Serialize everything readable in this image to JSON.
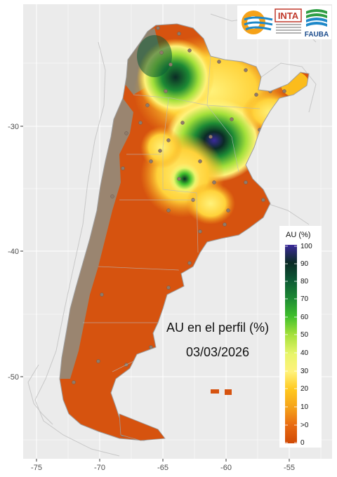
{
  "map": {
    "title": "AU en el perfil (%)",
    "date": "03/03/2026",
    "y_ticks": [
      "-30",
      "-40",
      "-50"
    ],
    "x_ticks": [
      "-75",
      "-70",
      "-65",
      "-60",
      "-55"
    ]
  },
  "legend": {
    "title": "AU (%)",
    "labels": [
      "100",
      "90",
      "80",
      "70",
      "60",
      "50",
      "40",
      "30",
      "20",
      "10",
      ">0",
      "0"
    ],
    "colors": [
      "#3b2a9a",
      "#0b2b25",
      "#0d5a35",
      "#1d8a34",
      "#3fbf2c",
      "#a3e03a",
      "#e8f56a",
      "#fff27a",
      "#ffc81e",
      "#f5a21a",
      "#e86a12",
      "#d04a05"
    ]
  },
  "logos": {
    "inta": "INTA",
    "fauba": "FAUBA"
  },
  "colors": {
    "panel": "#ebebeb",
    "grid": "#ffffff",
    "land_dry": "#d6530f",
    "masked": "#9a8570"
  }
}
